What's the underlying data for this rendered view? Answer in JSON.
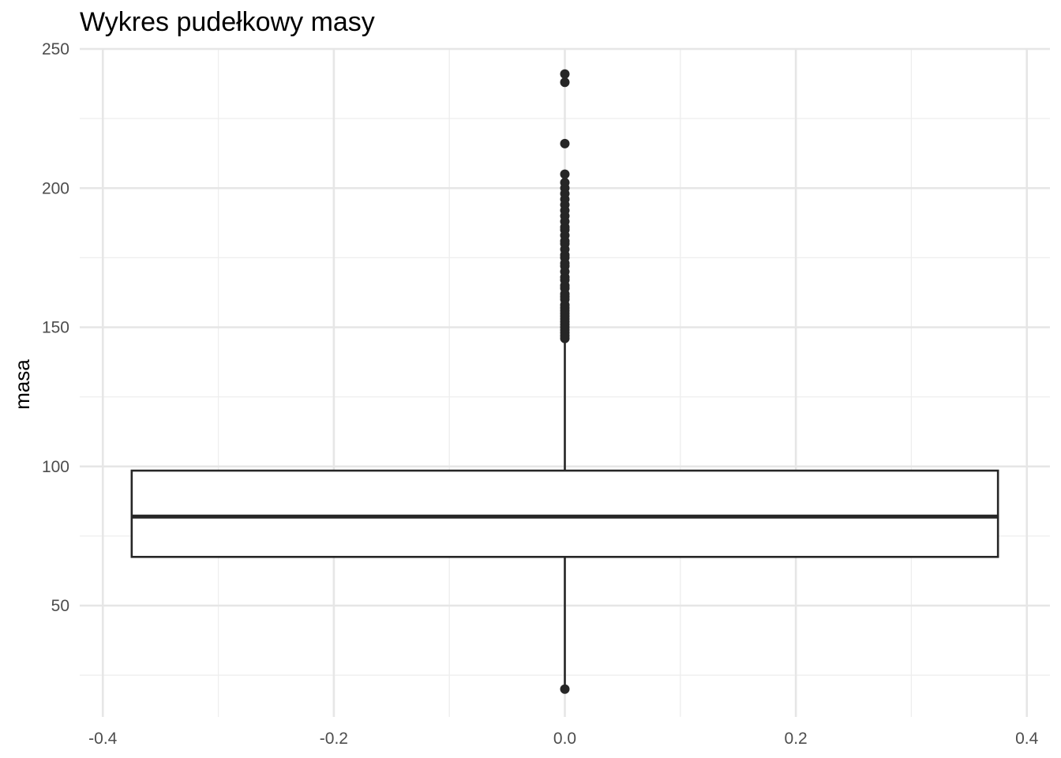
{
  "chart_data": {
    "type": "boxplot",
    "title": "Wykres pudełkowy masy",
    "xlabel": "",
    "ylabel": "masa",
    "xlim": [
      -0.42,
      0.42
    ],
    "ylim": [
      10,
      250
    ],
    "x_ticks": [
      "-0.4",
      "-0.2",
      "0.0",
      "0.2",
      "0.4"
    ],
    "y_ticks": [
      "50",
      "100",
      "150",
      "200",
      "250"
    ],
    "grid": true,
    "box": {
      "x_center": 0.0,
      "x_min": -0.375,
      "x_max": 0.375,
      "lower_whisker": 20,
      "q1": 67.5,
      "median": 82,
      "q3": 98.5,
      "upper_whisker": 145,
      "outliers": [
        20,
        241,
        238,
        216,
        205,
        202,
        200,
        198,
        196,
        194,
        192,
        190,
        188,
        186,
        185,
        183,
        181,
        180,
        178,
        176,
        175,
        173,
        172,
        170,
        168,
        167,
        165,
        164,
        162,
        161,
        160,
        158,
        157,
        156,
        155,
        154,
        153,
        152,
        151,
        150,
        149,
        148,
        147,
        146
      ]
    },
    "colors": {
      "box_line": "#262626",
      "points": "#262626",
      "fill": "#ffffff"
    }
  }
}
